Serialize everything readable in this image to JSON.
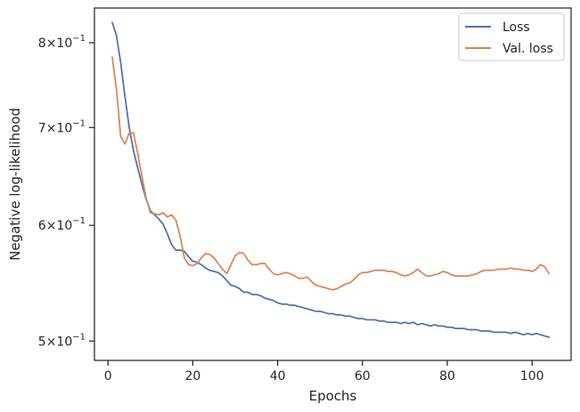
{
  "chart_data": {
    "type": "line",
    "xlabel": "Epochs",
    "ylabel": "Negative log-likelihood",
    "yscale": "log",
    "xlim": [
      -3.2,
      109.2
    ],
    "ylim": [
      0.485,
      0.845
    ],
    "grid": false,
    "legend_position": "top-right",
    "x_ticks": [
      {
        "value": 0,
        "label": "0"
      },
      {
        "value": 20,
        "label": "20"
      },
      {
        "value": 40,
        "label": "40"
      },
      {
        "value": 60,
        "label": "60"
      },
      {
        "value": 80,
        "label": "80"
      },
      {
        "value": 100,
        "label": "100"
      }
    ],
    "y_ticks": [
      {
        "value": 0.5,
        "mantissa": "5",
        "base": "10",
        "exponent": "−1"
      },
      {
        "value": 0.6,
        "mantissa": "6",
        "base": "10",
        "exponent": "−1"
      },
      {
        "value": 0.7,
        "mantissa": "7",
        "base": "10",
        "exponent": "−1"
      },
      {
        "value": 0.8,
        "mantissa": "8",
        "base": "10",
        "exponent": "−1"
      }
    ],
    "series": [
      {
        "name": "Loss",
        "color": "#4c72b0",
        "x": [
          1,
          2,
          3,
          4,
          5,
          6,
          7,
          8,
          9,
          10,
          11,
          12,
          13,
          14,
          15,
          16,
          17,
          18,
          19,
          20,
          21,
          22,
          23,
          24,
          25,
          26,
          27,
          28,
          29,
          30,
          31,
          32,
          33,
          34,
          35,
          36,
          37,
          38,
          39,
          40,
          41,
          42,
          43,
          44,
          45,
          46,
          47,
          48,
          49,
          50,
          51,
          52,
          53,
          54,
          55,
          56,
          57,
          58,
          59,
          60,
          61,
          62,
          63,
          64,
          65,
          66,
          67,
          68,
          69,
          70,
          71,
          72,
          73,
          74,
          75,
          76,
          77,
          78,
          79,
          80,
          81,
          82,
          83,
          84,
          85,
          86,
          87,
          88,
          89,
          90,
          91,
          92,
          93,
          94,
          95,
          96,
          97,
          98,
          99,
          100,
          101,
          102,
          103,
          104
        ],
        "y": [
          0.826,
          0.809,
          0.775,
          0.735,
          0.7,
          0.675,
          0.657,
          0.64,
          0.625,
          0.614,
          0.61,
          0.606,
          0.601,
          0.592,
          0.582,
          0.577,
          0.577,
          0.576,
          0.571,
          0.567,
          0.566,
          0.564,
          0.561,
          0.559,
          0.558,
          0.557,
          0.554,
          0.55,
          0.546,
          0.545,
          0.543,
          0.54,
          0.54,
          0.538,
          0.538,
          0.537,
          0.535,
          0.534,
          0.533,
          0.531,
          0.53,
          0.53,
          0.529,
          0.529,
          0.528,
          0.527,
          0.526,
          0.525,
          0.524,
          0.524,
          0.523,
          0.522,
          0.522,
          0.521,
          0.521,
          0.52,
          0.52,
          0.519,
          0.518,
          0.518,
          0.517,
          0.517,
          0.517,
          0.516,
          0.516,
          0.515,
          0.515,
          0.515,
          0.514,
          0.515,
          0.514,
          0.515,
          0.513,
          0.514,
          0.513,
          0.512,
          0.513,
          0.512,
          0.512,
          0.511,
          0.511,
          0.51,
          0.51,
          0.51,
          0.509,
          0.509,
          0.509,
          0.508,
          0.508,
          0.508,
          0.507,
          0.507,
          0.507,
          0.507,
          0.506,
          0.507,
          0.506,
          0.505,
          0.506,
          0.505,
          0.506,
          0.505,
          0.504,
          0.503
        ]
      },
      {
        "name": "Val. loss",
        "color": "#dd8452",
        "x": [
          1,
          2,
          3,
          4,
          5,
          6,
          7,
          8,
          9,
          10,
          11,
          12,
          13,
          14,
          15,
          16,
          17,
          18,
          19,
          20,
          21,
          22,
          23,
          24,
          25,
          26,
          27,
          28,
          29,
          30,
          31,
          32,
          33,
          34,
          35,
          36,
          37,
          38,
          39,
          40,
          41,
          42,
          43,
          44,
          45,
          46,
          47,
          48,
          49,
          50,
          51,
          52,
          53,
          54,
          55,
          56,
          57,
          58,
          59,
          60,
          61,
          62,
          63,
          64,
          65,
          66,
          67,
          68,
          69,
          70,
          71,
          72,
          73,
          74,
          75,
          76,
          77,
          78,
          79,
          80,
          81,
          82,
          83,
          84,
          85,
          86,
          87,
          88,
          89,
          90,
          91,
          92,
          93,
          94,
          95,
          96,
          97,
          98,
          99,
          100,
          101,
          102,
          103,
          104
        ],
        "y": [
          0.782,
          0.743,
          0.69,
          0.682,
          0.694,
          0.694,
          0.672,
          0.648,
          0.626,
          0.612,
          0.611,
          0.61,
          0.612,
          0.608,
          0.61,
          0.605,
          0.59,
          0.57,
          0.564,
          0.563,
          0.565,
          0.57,
          0.574,
          0.573,
          0.57,
          0.565,
          0.56,
          0.556,
          0.564,
          0.572,
          0.575,
          0.574,
          0.568,
          0.564,
          0.564,
          0.565,
          0.565,
          0.56,
          0.556,
          0.555,
          0.556,
          0.557,
          0.556,
          0.554,
          0.552,
          0.552,
          0.553,
          0.549,
          0.546,
          0.545,
          0.544,
          0.543,
          0.542,
          0.543,
          0.545,
          0.547,
          0.548,
          0.551,
          0.555,
          0.557,
          0.557,
          0.558,
          0.559,
          0.559,
          0.559,
          0.558,
          0.558,
          0.557,
          0.555,
          0.554,
          0.555,
          0.557,
          0.56,
          0.557,
          0.554,
          0.554,
          0.555,
          0.556,
          0.558,
          0.557,
          0.555,
          0.554,
          0.554,
          0.554,
          0.554,
          0.555,
          0.556,
          0.558,
          0.559,
          0.559,
          0.559,
          0.56,
          0.56,
          0.56,
          0.561,
          0.56,
          0.56,
          0.559,
          0.559,
          0.558,
          0.56,
          0.564,
          0.562,
          0.556
        ]
      }
    ]
  }
}
